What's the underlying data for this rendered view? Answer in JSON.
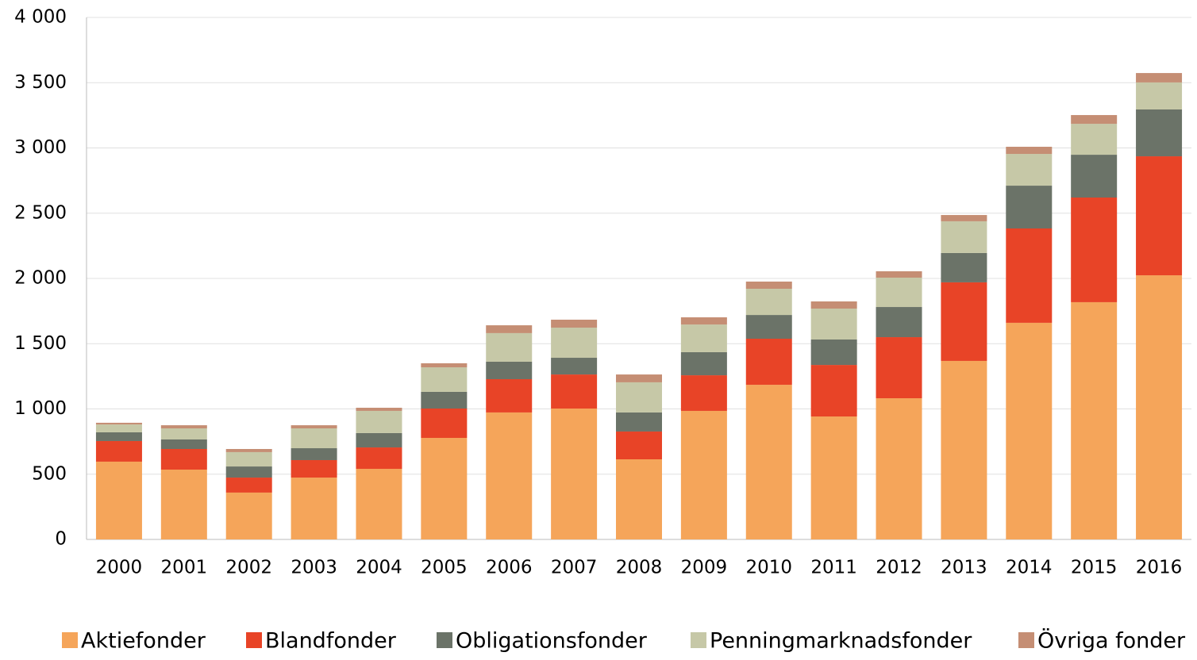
{
  "chart_data": {
    "type": "stacked_bar",
    "categories": [
      "2000",
      "2001",
      "2002",
      "2003",
      "2004",
      "2005",
      "2006",
      "2007",
      "2008",
      "2009",
      "2010",
      "2011",
      "2012",
      "2013",
      "2014",
      "2015",
      "2016"
    ],
    "series": [
      {
        "name": "Aktiefonder",
        "color": "#f5a55a",
        "values": [
          596,
          535,
          359,
          474,
          541,
          778,
          973,
          1003,
          614,
          985,
          1185,
          942,
          1082,
          1368,
          1660,
          1818,
          2024
        ]
      },
      {
        "name": "Blandfonder",
        "color": "#e84427",
        "values": [
          158,
          158,
          115,
          134,
          164,
          225,
          255,
          261,
          213,
          273,
          353,
          395,
          468,
          602,
          723,
          802,
          912
        ]
      },
      {
        "name": "Obligationsfonder",
        "color": "#6b7368",
        "values": [
          67,
          73,
          85,
          91,
          110,
          128,
          134,
          128,
          146,
          177,
          182,
          195,
          231,
          225,
          328,
          328,
          359
        ]
      },
      {
        "name": "Penningmarknadsfonder",
        "color": "#c6c8a7",
        "values": [
          60,
          85,
          110,
          152,
          170,
          188,
          219,
          231,
          231,
          212,
          201,
          237,
          225,
          243,
          243,
          237,
          207
        ]
      },
      {
        "name": "Övriga fonder",
        "color": "#c58e74",
        "values": [
          13,
          24,
          24,
          24,
          24,
          31,
          60,
          61,
          60,
          55,
          55,
          55,
          49,
          48,
          55,
          67,
          72
        ]
      }
    ],
    "ylim": [
      0,
      4000
    ],
    "yticks": [
      0,
      500,
      {
        "value": 1000,
        "label": "1 000"
      },
      {
        "value": 1500,
        "label": "1 500"
      },
      {
        "value": 2000,
        "label": "2 000"
      },
      {
        "value": 2500,
        "label": "2 500"
      },
      {
        "value": 3000,
        "label": "3 000"
      },
      {
        "value": 3500,
        "label": "3 500"
      },
      {
        "value": 4000,
        "label": "4 000"
      }
    ],
    "grid": true,
    "legend": "bottom"
  }
}
